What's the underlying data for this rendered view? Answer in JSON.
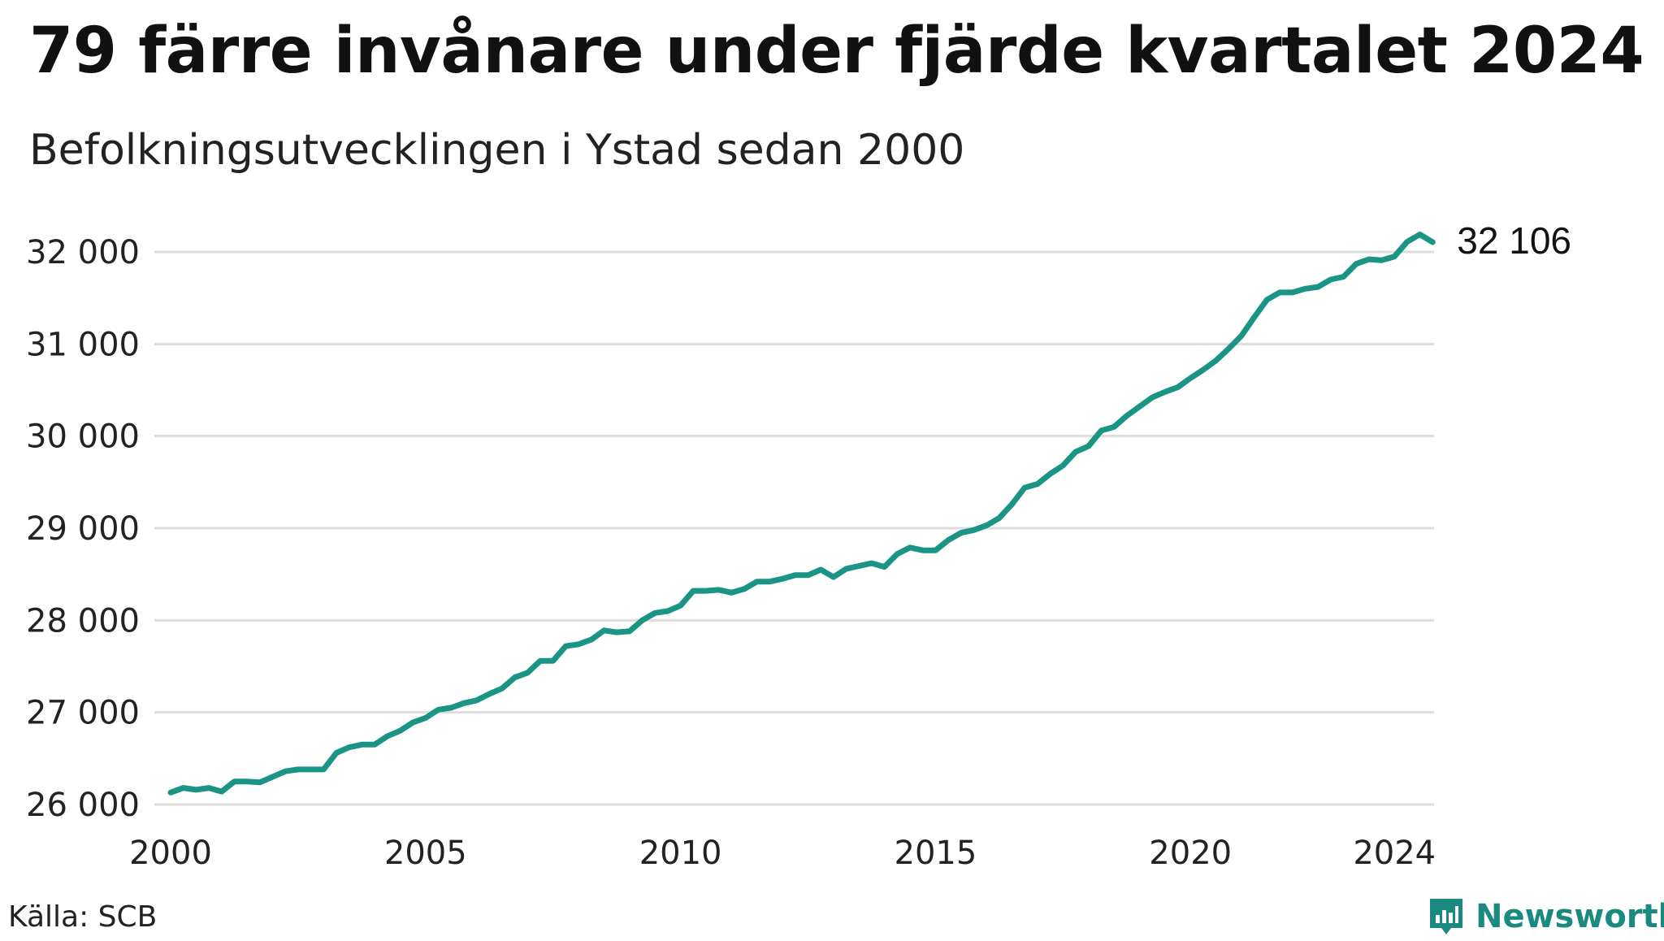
{
  "title": "79 färre invånare under fjärde kvartalet 2024",
  "subtitle": "Befolkningsutvecklingen i Ystad sedan 2000",
  "source": "Källa: SCB",
  "brand": "Newsworthy",
  "colors": {
    "line": "#1a9485",
    "grid": "#dddddd",
    "brand": "#1a8a80"
  },
  "chart_data": {
    "type": "line",
    "title": "79 färre invånare under fjärde kvartalet 2024",
    "subtitle": "Befolkningsutvecklingen i Ystad sedan 2000",
    "xlabel": "",
    "ylabel": "",
    "xlim": [
      2000,
      2025
    ],
    "ylim": [
      26000,
      32000
    ],
    "x_ticks": [
      2000,
      2005,
      2010,
      2015,
      2020,
      2024
    ],
    "x_tick_labels": [
      "2000",
      "2005",
      "2010",
      "2015",
      "2020",
      "2024"
    ],
    "y_ticks": [
      26000,
      27000,
      28000,
      29000,
      30000,
      31000,
      32000
    ],
    "y_tick_labels": [
      "26 000",
      "27 000",
      "28 000",
      "29 000",
      "30 000",
      "31 000",
      "32 000"
    ],
    "grid": "horizontal",
    "last_value_label": "32 106",
    "series": [
      {
        "x": [
          2000.0,
          2000.25,
          2000.5,
          2000.75,
          2001.0,
          2001.25,
          2001.5,
          2001.75,
          2002.0,
          2002.25,
          2002.5,
          2002.75,
          2003.0,
          2003.25,
          2003.5,
          2003.75,
          2004.0,
          2004.25,
          2004.5,
          2004.75,
          2005.0,
          2005.25,
          2005.5,
          2005.75,
          2006.0,
          2006.25,
          2006.5,
          2006.75,
          2007.0,
          2007.25,
          2007.5,
          2007.75,
          2008.0,
          2008.25,
          2008.5,
          2008.75,
          2009.0,
          2009.25,
          2009.5,
          2009.75,
          2010.0,
          2010.25,
          2010.5,
          2010.75,
          2011.0,
          2011.25,
          2011.5,
          2011.75,
          2012.0,
          2012.25,
          2012.5,
          2012.75,
          2013.0,
          2013.25,
          2013.5,
          2013.75,
          2014.0,
          2014.25,
          2014.5,
          2014.75,
          2015.0,
          2015.25,
          2015.5,
          2015.75,
          2016.0,
          2016.25,
          2016.5,
          2016.75,
          2017.0,
          2017.25,
          2017.5,
          2017.75,
          2018.0,
          2018.25,
          2018.5,
          2018.75,
          2019.0,
          2019.25,
          2019.5,
          2019.75,
          2020.0,
          2020.25,
          2020.5,
          2020.75,
          2021.0,
          2021.25,
          2021.5,
          2021.75,
          2022.0,
          2022.25,
          2022.5,
          2022.75,
          2023.0,
          2023.25,
          2023.5,
          2023.75,
          2024.0,
          2024.25,
          2024.5,
          2024.75
        ],
        "values": [
          26130,
          26180,
          26160,
          26180,
          26140,
          26250,
          26250,
          26240,
          26300,
          26360,
          26380,
          26380,
          26380,
          26560,
          26620,
          26650,
          26650,
          26740,
          26800,
          26890,
          26940,
          27030,
          27050,
          27100,
          27130,
          27200,
          27260,
          27380,
          27430,
          27560,
          27560,
          27720,
          27740,
          27790,
          27890,
          27870,
          27880,
          28000,
          28080,
          28100,
          28160,
          28320,
          28320,
          28330,
          28300,
          28340,
          28420,
          28420,
          28450,
          28490,
          28490,
          28550,
          28470,
          28560,
          28590,
          28620,
          28580,
          28720,
          28790,
          28760,
          28760,
          28870,
          28950,
          28980,
          29030,
          29110,
          29260,
          29440,
          29480,
          29590,
          29680,
          29830,
          29890,
          30060,
          30100,
          30220,
          30320,
          30420,
          30480,
          30530,
          30630,
          30720,
          30820,
          30950,
          31090,
          31290,
          31480,
          31560,
          31560,
          31600,
          31620,
          31700,
          31730,
          31870,
          31920,
          31910,
          31950,
          32110,
          32190,
          32106
        ]
      }
    ]
  }
}
